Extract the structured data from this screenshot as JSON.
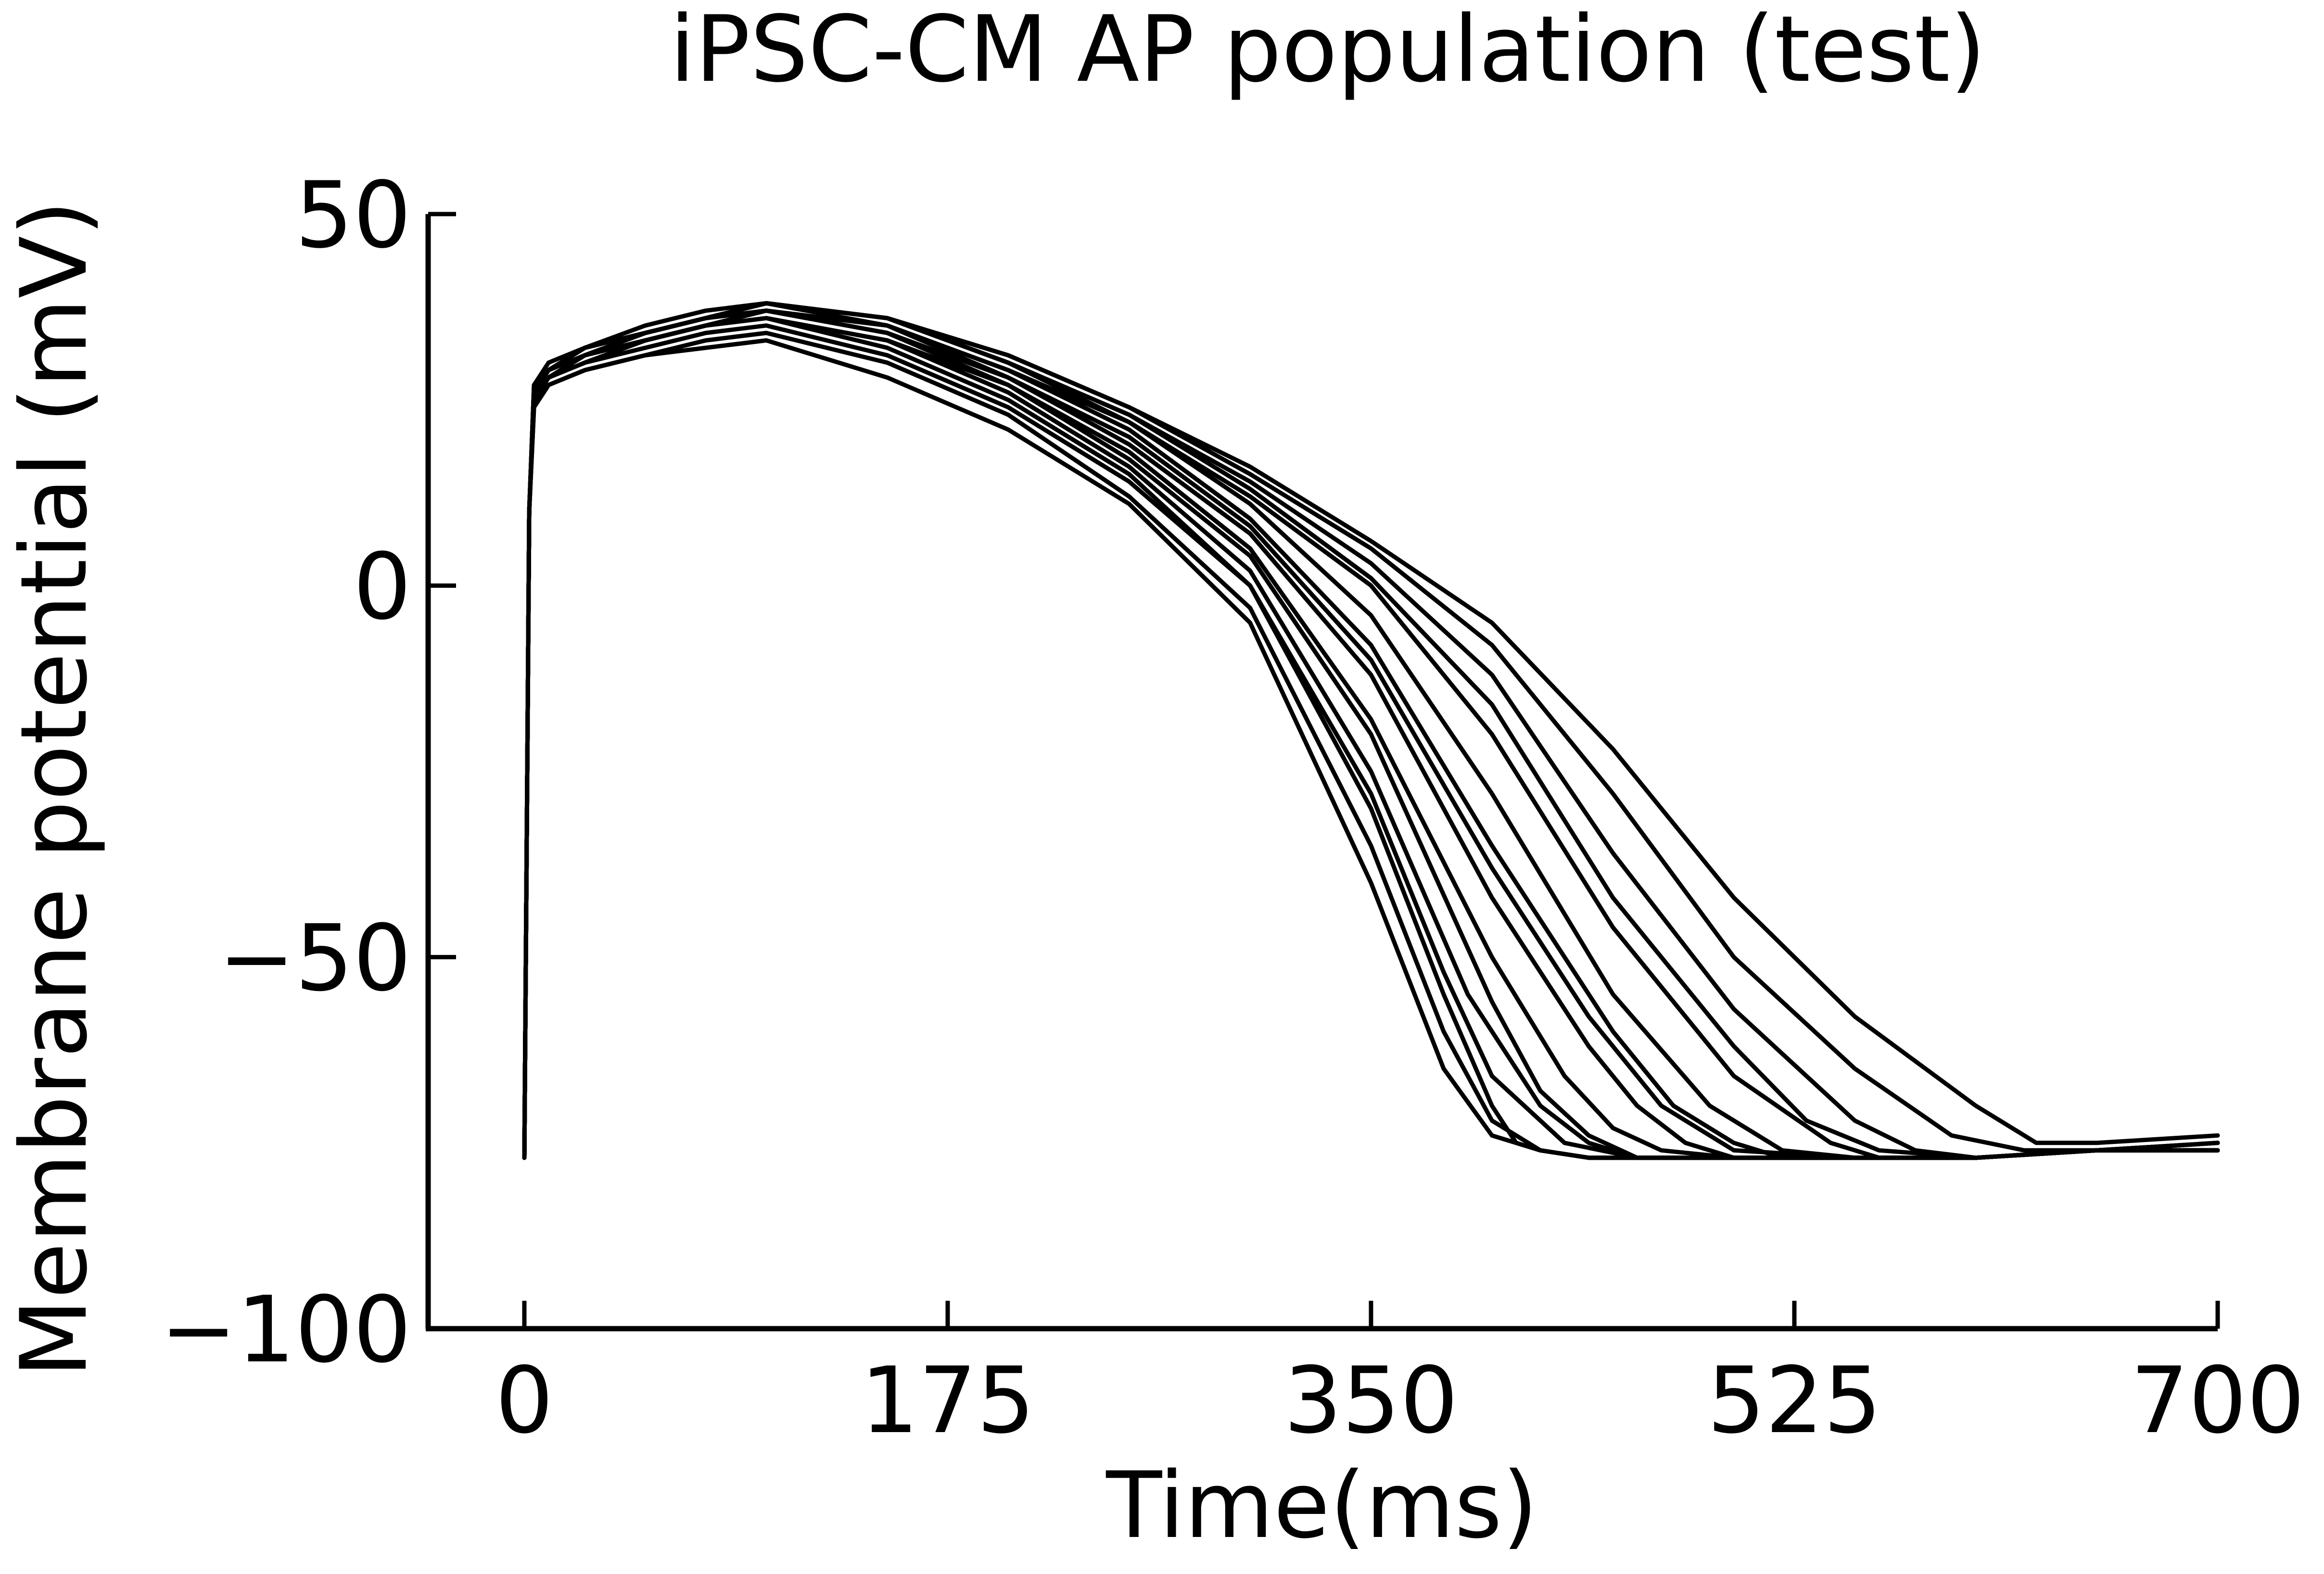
{
  "chart_data": {
    "type": "line",
    "title": "iPSC-CM AP population (test)",
    "xlabel": "Time(ms)",
    "ylabel": "Membrane potential (mV)",
    "xlim": [
      0,
      700
    ],
    "ylim": [
      -100,
      50
    ],
    "xticks": [
      0,
      175,
      350,
      525,
      700
    ],
    "xtick_labels": [
      "0",
      "175",
      "350",
      "525",
      "700"
    ],
    "yticks": [
      -100,
      -50,
      0,
      50
    ],
    "ytick_labels": [
      "−100",
      "−50",
      "0",
      "50"
    ],
    "legend": "none",
    "grid": false,
    "line_color": "#000000",
    "series_note_count": 16,
    "series": [
      {
        "x": [
          0,
          2,
          4,
          10,
          25,
          50,
          75,
          100,
          150,
          200,
          250,
          300,
          350,
          380,
          400,
          410,
          420,
          440,
          470,
          500,
          550,
          600,
          650,
          700
        ],
        "values": [
          -77,
          10,
          25,
          28,
          30,
          33,
          35,
          36,
          32,
          25,
          15,
          0,
          -30,
          -55,
          -70,
          -75,
          -76,
          -77,
          -77,
          -77,
          -77,
          -77,
          -76,
          -76
        ]
      },
      {
        "x": [
          0,
          2,
          4,
          10,
          25,
          50,
          75,
          100,
          150,
          200,
          250,
          300,
          350,
          380,
          400,
          420,
          440,
          470,
          500,
          550,
          600,
          650,
          700
        ],
        "values": [
          -77,
          10,
          24,
          27,
          29,
          31,
          33,
          34,
          30,
          23,
          12,
          -3,
          -35,
          -60,
          -72,
          -76,
          -77,
          -77,
          -77,
          -77,
          -77,
          -76,
          -76
        ]
      },
      {
        "x": [
          0,
          2,
          4,
          10,
          25,
          50,
          75,
          100,
          150,
          200,
          250,
          300,
          350,
          390,
          420,
          440,
          460,
          490,
          550,
          600,
          650,
          700
        ],
        "values": [
          -77,
          10,
          26,
          28,
          30,
          33,
          35,
          36,
          33,
          26,
          16,
          2,
          -25,
          -55,
          -70,
          -75,
          -77,
          -77,
          -77,
          -77,
          -76,
          -76
        ]
      },
      {
        "x": [
          0,
          2,
          4,
          10,
          25,
          50,
          75,
          100,
          150,
          200,
          250,
          300,
          350,
          400,
          430,
          450,
          470,
          500,
          550,
          600,
          650,
          700
        ],
        "values": [
          -77,
          10,
          26,
          28,
          31,
          33,
          35,
          37,
          34,
          27,
          18,
          5,
          -18,
          -50,
          -66,
          -73,
          -76,
          -77,
          -77,
          -77,
          -76,
          -76
        ]
      },
      {
        "x": [
          0,
          2,
          4,
          10,
          25,
          50,
          75,
          100,
          150,
          200,
          250,
          300,
          350,
          400,
          440,
          460,
          480,
          500,
          550,
          600,
          650,
          700
        ],
        "values": [
          -77,
          10,
          25,
          28,
          31,
          33,
          35,
          37,
          34,
          28,
          19,
          7,
          -12,
          -42,
          -62,
          -70,
          -75,
          -77,
          -77,
          -77,
          -76,
          -76
        ]
      },
      {
        "x": [
          0,
          2,
          4,
          10,
          25,
          50,
          75,
          100,
          150,
          200,
          250,
          300,
          350,
          400,
          450,
          475,
          500,
          520,
          550,
          600,
          650,
          700
        ],
        "values": [
          -77,
          10,
          26,
          29,
          31,
          34,
          36,
          37,
          35,
          29,
          21,
          9,
          -8,
          -35,
          -60,
          -70,
          -75,
          -77,
          -77,
          -77,
          -76,
          -76
        ]
      },
      {
        "x": [
          0,
          2,
          4,
          10,
          25,
          50,
          75,
          100,
          150,
          200,
          250,
          300,
          350,
          400,
          450,
          490,
          520,
          550,
          600,
          650,
          700
        ],
        "values": [
          -77,
          10,
          26,
          29,
          31,
          34,
          36,
          38,
          35,
          29,
          22,
          11,
          -4,
          -28,
          -55,
          -70,
          -76,
          -77,
          -77,
          -76,
          -76
        ]
      },
      {
        "x": [
          0,
          2,
          4,
          10,
          25,
          50,
          75,
          100,
          150,
          200,
          250,
          300,
          350,
          400,
          450,
          500,
          540,
          560,
          600,
          650,
          700
        ],
        "values": [
          -77,
          10,
          27,
          29,
          32,
          34,
          36,
          38,
          36,
          30,
          22,
          12,
          0,
          -20,
          -46,
          -66,
          -75,
          -77,
          -77,
          -76,
          -75
        ]
      },
      {
        "x": [
          0,
          2,
          4,
          10,
          25,
          50,
          75,
          100,
          150,
          200,
          250,
          300,
          350,
          400,
          450,
          500,
          550,
          575,
          600,
          650,
          700
        ],
        "values": [
          -77,
          10,
          27,
          29,
          32,
          34,
          36,
          38,
          36,
          30,
          23,
          14,
          3,
          -12,
          -36,
          -57,
          -72,
          -76,
          -77,
          -76,
          -75
        ]
      },
      {
        "x": [
          0,
          2,
          4,
          10,
          25,
          50,
          75,
          100,
          150,
          200,
          250,
          300,
          350,
          400,
          450,
          500,
          550,
          590,
          620,
          650,
          700
        ],
        "values": [
          -77,
          10,
          27,
          29,
          32,
          34,
          36,
          38,
          36,
          31,
          24,
          15,
          5,
          -8,
          -28,
          -50,
          -65,
          -74,
          -76,
          -76,
          -75
        ]
      },
      {
        "x": [
          0,
          2,
          4,
          10,
          25,
          50,
          75,
          100,
          150,
          200,
          250,
          300,
          350,
          400,
          450,
          500,
          550,
          600,
          625,
          650,
          700
        ],
        "values": [
          -77,
          10,
          27,
          30,
          32,
          35,
          37,
          38,
          36,
          31,
          24,
          16,
          6,
          -5,
          -22,
          -42,
          -58,
          -70,
          -75,
          -75,
          -74
        ]
      },
      {
        "x": [
          0,
          2,
          4,
          10,
          25,
          50,
          75,
          100,
          150,
          200,
          250,
          300,
          350,
          380,
          400,
          420,
          440,
          470,
          500,
          550,
          600,
          650,
          700
        ],
        "values": [
          -77,
          10,
          24,
          27,
          29,
          31,
          32,
          33,
          28,
          21,
          11,
          -5,
          -40,
          -65,
          -74,
          -76,
          -77,
          -77,
          -77,
          -77,
          -77,
          -76,
          -76
        ]
      },
      {
        "x": [
          0,
          2,
          4,
          10,
          25,
          50,
          75,
          100,
          150,
          200,
          250,
          300,
          350,
          380,
          400,
          430,
          460,
          500,
          550,
          600,
          650,
          700
        ],
        "values": [
          -77,
          10,
          25,
          28,
          30,
          32,
          34,
          35,
          31,
          24,
          14,
          0,
          -28,
          -52,
          -66,
          -75,
          -77,
          -77,
          -77,
          -77,
          -76,
          -76
        ]
      },
      {
        "x": [
          0,
          2,
          4,
          10,
          25,
          50,
          75,
          100,
          150,
          200,
          250,
          300,
          350,
          400,
          420,
          440,
          460,
          490,
          550,
          600,
          650,
          700
        ],
        "values": [
          -77,
          10,
          26,
          28,
          31,
          33,
          35,
          36,
          33,
          27,
          17,
          4,
          -20,
          -56,
          -68,
          -74,
          -77,
          -77,
          -77,
          -77,
          -76,
          -76
        ]
      },
      {
        "x": [
          0,
          2,
          4,
          10,
          25,
          50,
          75,
          100,
          150,
          200,
          250,
          300,
          350,
          400,
          440,
          470,
          500,
          550,
          600,
          650,
          700
        ],
        "values": [
          -77,
          10,
          26,
          29,
          31,
          34,
          36,
          37,
          35,
          28,
          20,
          8,
          -10,
          -38,
          -58,
          -70,
          -76,
          -77,
          -77,
          -76,
          -76
        ]
      },
      {
        "x": [
          0,
          2,
          4,
          10,
          25,
          50,
          75,
          100,
          150,
          200,
          250,
          300,
          350,
          400,
          450,
          500,
          530,
          560,
          600,
          650,
          700
        ],
        "values": [
          -77,
          10,
          27,
          29,
          32,
          34,
          36,
          38,
          36,
          30,
          23,
          13,
          1,
          -16,
          -42,
          -62,
          -72,
          -76,
          -77,
          -76,
          -75
        ]
      }
    ]
  }
}
